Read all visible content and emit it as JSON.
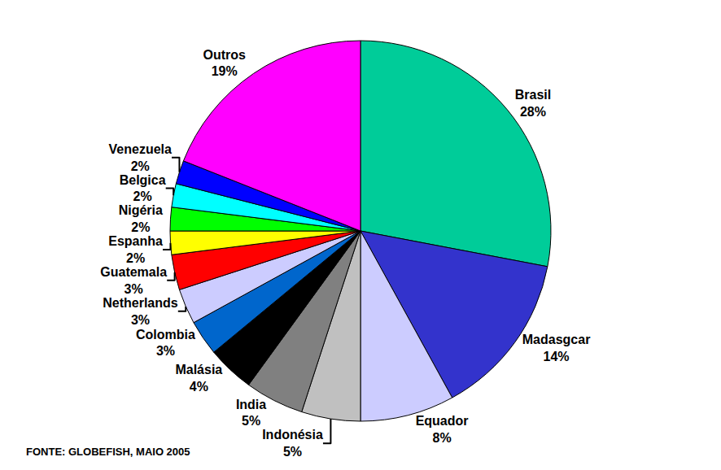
{
  "chart_data": {
    "type": "pie",
    "categories": [
      "Brasil",
      "Madasgcar",
      "Equador",
      "Indonésia",
      "India",
      "Malásia",
      "Colombia",
      "Netherlands",
      "Guatemala",
      "Espanha",
      "Nigéria",
      "Belgica",
      "Venezuela",
      "Outros"
    ],
    "values": [
      28,
      14,
      8,
      5,
      5,
      4,
      3,
      3,
      3,
      2,
      2,
      2,
      2,
      19
    ],
    "value_labels": [
      "28%",
      "14%",
      "8%",
      "5%",
      "5%",
      "4%",
      "3%",
      "3%",
      "3%",
      "2%",
      "2%",
      "2%",
      "2%",
      "19%"
    ],
    "colors": [
      "#00cc99",
      "#3333cc",
      "#ccccff",
      "#c0c0c0",
      "#808080",
      "#000000",
      "#0066cc",
      "#ccccff",
      "#ff0000",
      "#ffff00",
      "#00ff00",
      "#00ffff",
      "#0000ff",
      "#ff00ff"
    ],
    "data_labels": true,
    "annotations": [
      "FONTE: GLOBEFISH, MAIO 2005"
    ]
  }
}
